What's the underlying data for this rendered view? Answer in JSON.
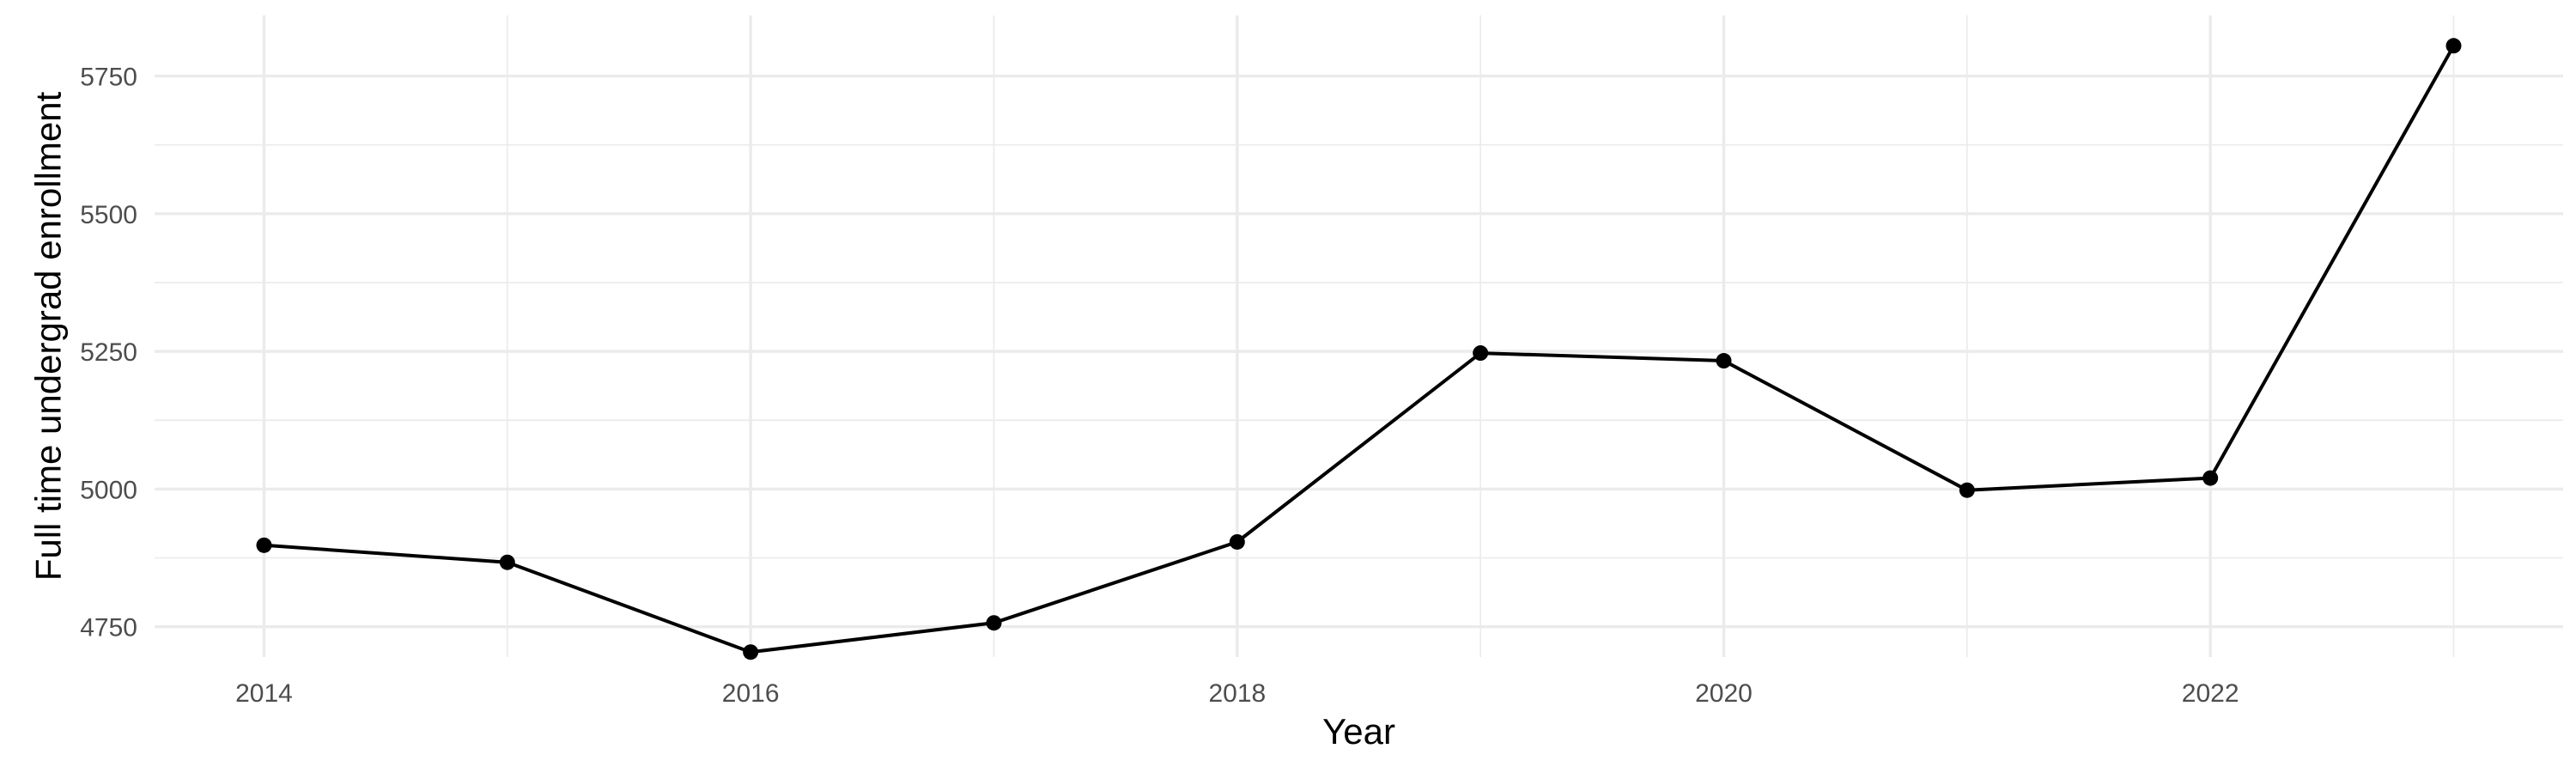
{
  "chart_data": {
    "type": "line",
    "xlabel": "Year",
    "ylabel": "Full time undergrad enrollment",
    "x": [
      2014,
      2015,
      2016,
      2017,
      2018,
      2019,
      2020,
      2021,
      2022,
      2023
    ],
    "series": [
      {
        "values": [
          4898,
          4867,
          4704,
          4757,
          4904,
          5247,
          5233,
          4998,
          5020,
          5805
        ]
      }
    ],
    "xlim": [
      2013.55,
      2023.45
    ],
    "ylim": [
      4695,
      5860
    ],
    "x_ticks": [
      "2014",
      "2016",
      "2018",
      "2020",
      "2022"
    ],
    "y_ticks": [
      "4750",
      "5000",
      "5250",
      "5500",
      "5750"
    ],
    "grid": true,
    "line_color": "#000000",
    "grid_color": "#ebebeb"
  }
}
